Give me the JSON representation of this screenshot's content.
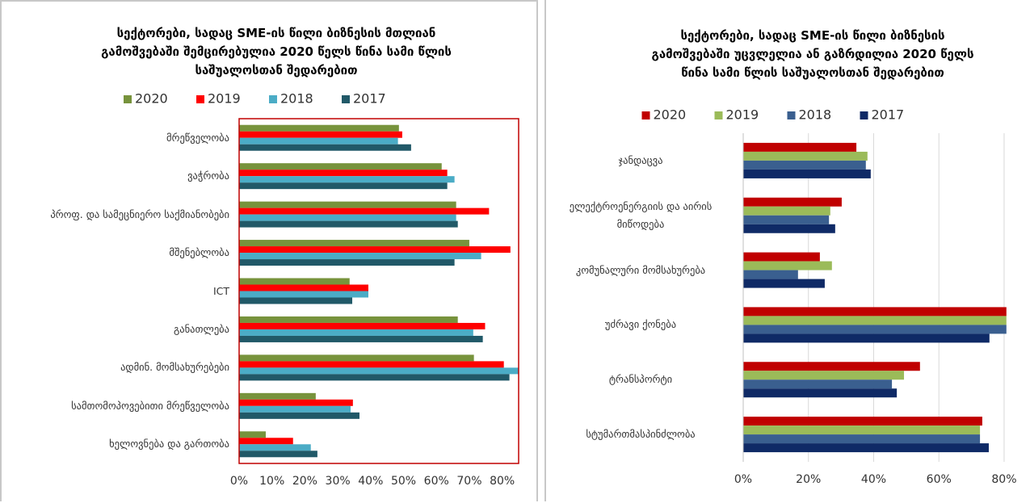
{
  "chart_data": [
    {
      "type": "barh",
      "title": "სექტორები, სადაც SME-ის წილი ბიზნესის მთლიან\nგამოშვებაში შემცირებულია 2020 წელს წინა სამი წლის\nსაშუალოსთან შედარებით",
      "categories": [
        "მრეწველობა",
        "ვაჭრობა",
        "პროფ. და სამეცნიერო საქმიანობები",
        "მშენებლობა",
        "ICT",
        "განათლება",
        "ადმინ. მომსახურებები",
        "სამთომოპოვებითი მრეწველობა",
        "ხელოვნება და გართობა"
      ],
      "series": [
        {
          "name": "2020",
          "color": "#77933c",
          "values": [
            48.6,
            61.6,
            66,
            70,
            33.6,
            66.5,
            71.4,
            23.3,
            8.1
          ]
        },
        {
          "name": "2019",
          "color": "#ff0000",
          "values": [
            49.6,
            63.3,
            76,
            82.5,
            39.3,
            74.8,
            80.5,
            34.6,
            16.4
          ]
        },
        {
          "name": "2018",
          "color": "#4bacc6",
          "values": [
            48.3,
            65.5,
            66,
            73.6,
            39.3,
            71.2,
            85,
            33.9,
            21.8
          ]
        },
        {
          "name": "2017",
          "color": "#215968",
          "values": [
            52.3,
            63.3,
            66.5,
            65.5,
            34.4,
            74.1,
            82.2,
            36.6,
            23.8
          ]
        }
      ],
      "xlim": [
        0,
        85
      ],
      "xticks": [
        {
          "value": 0,
          "label": "0%"
        },
        {
          "value": 10,
          "label": "10%"
        },
        {
          "value": 20,
          "label": "20%"
        },
        {
          "value": 30,
          "label": "30%"
        },
        {
          "value": 40,
          "label": "40%"
        },
        {
          "value": 50,
          "label": "50%"
        },
        {
          "value": 60,
          "label": "60%"
        },
        {
          "value": 70,
          "label": "70%"
        },
        {
          "value": 80,
          "label": "80%"
        }
      ],
      "grid": false,
      "plot_border": "#c00000"
    },
    {
      "type": "barh",
      "title": "სექტორები, სადაც SME-ის წილი ბიზნესის\nგამოშვებაში უცვლელია ან გაზრდილია 2020 წელს\nწინა სამი წლის საშუალოსთან შედარებით",
      "categories": [
        "ჯანდაცვა",
        "ელექტროენერგიის და აირის\nმიწოდება",
        "კომუნალური მომსახურება",
        "უძრავი ქონება",
        "ტრანსპორტი",
        "სტუმართმასპინძლობა"
      ],
      "series": [
        {
          "name": "2020",
          "color": "#c00000",
          "values": [
            34.7,
            30.2,
            23.5,
            80.7,
            54.2,
            73.3
          ]
        },
        {
          "name": "2019",
          "color": "#9bbb59",
          "values": [
            38.1,
            26.7,
            27.2,
            80.7,
            49.3,
            72.6
          ]
        },
        {
          "name": "2018",
          "color": "#3a5f8f",
          "values": [
            37.6,
            26.3,
            16.8,
            80.7,
            45.6,
            72.6
          ]
        },
        {
          "name": "2017",
          "color": "#0f2a66",
          "values": [
            39.1,
            28.2,
            25,
            75.5,
            47.1,
            75.3
          ]
        }
      ],
      "xlim": [
        0,
        81
      ],
      "xticks": [
        {
          "value": 0,
          "label": "0%"
        },
        {
          "value": 20,
          "label": "20%"
        },
        {
          "value": 40,
          "label": "40%"
        },
        {
          "value": 60,
          "label": "60%"
        },
        {
          "value": 80,
          "label": "80%"
        }
      ],
      "grid": true
    }
  ]
}
